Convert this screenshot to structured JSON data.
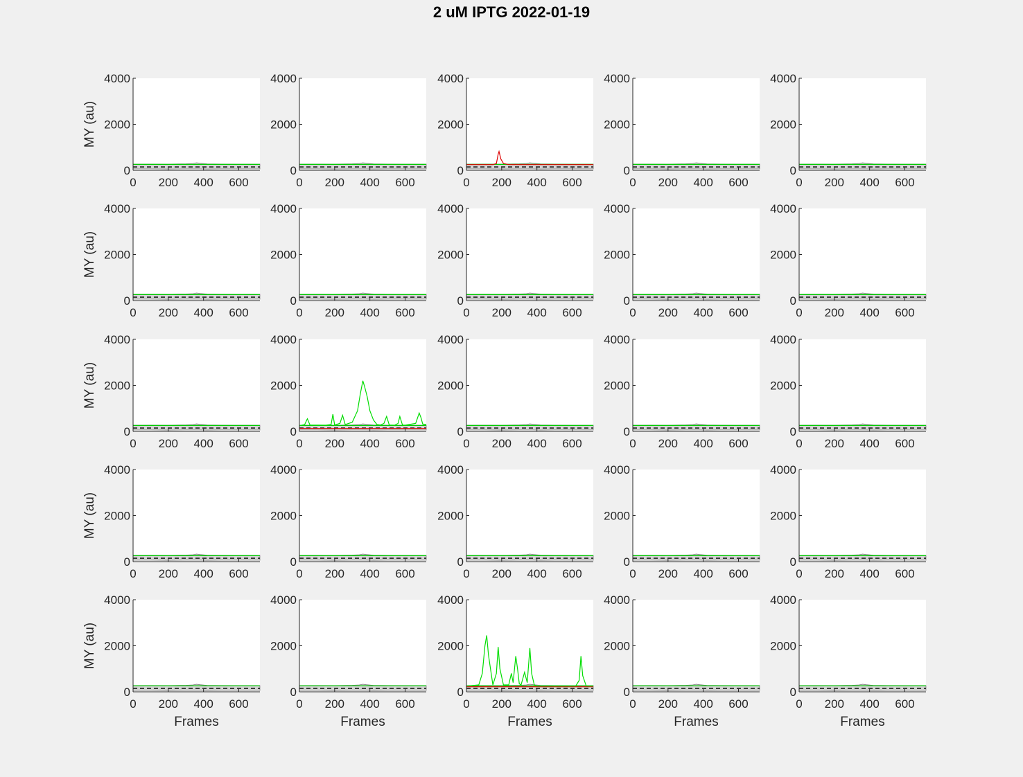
{
  "figure": {
    "title": "2 uM IPTG 2022-01-19",
    "background": "#f0f0f0"
  },
  "colors": {
    "band_fill": "#d3d3d3",
    "band_edge": "#808080",
    "threshold": "#00cc00",
    "trace_green": "#00dd00",
    "trace_red": "#dd0000",
    "baseline_dash": "#000000"
  },
  "chart_data": {
    "type": "line",
    "layout": {
      "rows": 5,
      "cols": 5
    },
    "ylabel": "MY (au)",
    "xlabel": "Frames",
    "xlim": [
      0,
      720
    ],
    "ylim": [
      0,
      4000
    ],
    "xticks": [
      0,
      200,
      400,
      600
    ],
    "yticks": [
      0,
      2000,
      4000
    ],
    "xtick_labels": [
      "0",
      "200",
      "400",
      "600"
    ],
    "ytick_labels": [
      "0",
      "2000",
      "4000"
    ],
    "band": {
      "x": [
        0,
        100,
        200,
        300,
        340,
        360,
        380,
        420,
        500,
        600,
        720
      ],
      "lower": [
        60,
        60,
        55,
        60,
        60,
        60,
        60,
        55,
        60,
        60,
        60
      ],
      "upper": [
        270,
        275,
        270,
        285,
        300,
        330,
        310,
        280,
        275,
        270,
        270
      ]
    },
    "threshold_y": 260,
    "baseline_y": 150,
    "panels": [
      {
        "label": "r1c1",
        "traces": []
      },
      {
        "label": "r1c2",
        "traces": []
      },
      {
        "label": "r1c3",
        "traces": [
          {
            "color": "red",
            "x": [
              0,
              150,
              170,
              180,
              185,
              195,
              210,
              240,
              720
            ],
            "y": [
              250,
              250,
              300,
              700,
              820,
              500,
              300,
              250,
              250
            ]
          }
        ]
      },
      {
        "label": "r1c4",
        "traces": []
      },
      {
        "label": "r1c5",
        "traces": []
      },
      {
        "label": "r2c1",
        "traces": []
      },
      {
        "label": "r2c2",
        "traces": []
      },
      {
        "label": "r2c3",
        "traces": []
      },
      {
        "label": "r2c4",
        "traces": []
      },
      {
        "label": "r2c5",
        "traces": []
      },
      {
        "label": "r3c1",
        "traces": []
      },
      {
        "label": "r3c2",
        "traces": [
          {
            "color": "red",
            "x": [
              0,
              720
            ],
            "y": [
              130,
              130
            ]
          },
          {
            "color": "green",
            "x": [
              0,
              30,
              45,
              60,
              150,
              180,
              190,
              200,
              230,
              245,
              260,
              300,
              330,
              345,
              360,
              370,
              385,
              400,
              420,
              440,
              460,
              480,
              495,
              510,
              540,
              560,
              570,
              585,
              600,
              660,
              680,
              690,
              700,
              720
            ],
            "y": [
              250,
              300,
              550,
              280,
              270,
              300,
              750,
              280,
              350,
              700,
              300,
              400,
              900,
              1600,
              2200,
              1950,
              1500,
              900,
              500,
              300,
              280,
              350,
              650,
              280,
              270,
              350,
              650,
              280,
              270,
              350,
              800,
              600,
              320,
              300
            ]
          }
        ]
      },
      {
        "label": "r3c3",
        "traces": []
      },
      {
        "label": "r3c4",
        "traces": []
      },
      {
        "label": "r3c5",
        "traces": []
      },
      {
        "label": "r4c1",
        "traces": []
      },
      {
        "label": "r4c2",
        "traces": []
      },
      {
        "label": "r4c3",
        "traces": []
      },
      {
        "label": "r4c4",
        "traces": []
      },
      {
        "label": "r4c5",
        "traces": []
      },
      {
        "label": "r5c1",
        "traces": []
      },
      {
        "label": "r5c2",
        "traces": []
      },
      {
        "label": "r5c3",
        "traces": [
          {
            "color": "red",
            "x": [
              0,
              720
            ],
            "y": [
              220,
              220
            ]
          },
          {
            "color": "green",
            "x": [
              0,
              70,
              90,
              105,
              115,
              125,
              150,
              170,
              180,
              190,
              210,
              240,
              255,
              265,
              280,
              290,
              300,
              310,
              330,
              345,
              360,
              370,
              385,
              400,
              620,
              640,
              650,
              660,
              680,
              720
            ],
            "y": [
              250,
              300,
              800,
              2000,
              2450,
              1600,
              300,
              800,
              1950,
              1000,
              300,
              300,
              800,
              400,
              1550,
              1000,
              350,
              300,
              850,
              400,
              1900,
              800,
              300,
              250,
              250,
              500,
              1550,
              700,
              250,
              250
            ]
          }
        ]
      },
      {
        "label": "r5c4",
        "traces": []
      },
      {
        "label": "r5c5",
        "traces": []
      }
    ]
  }
}
